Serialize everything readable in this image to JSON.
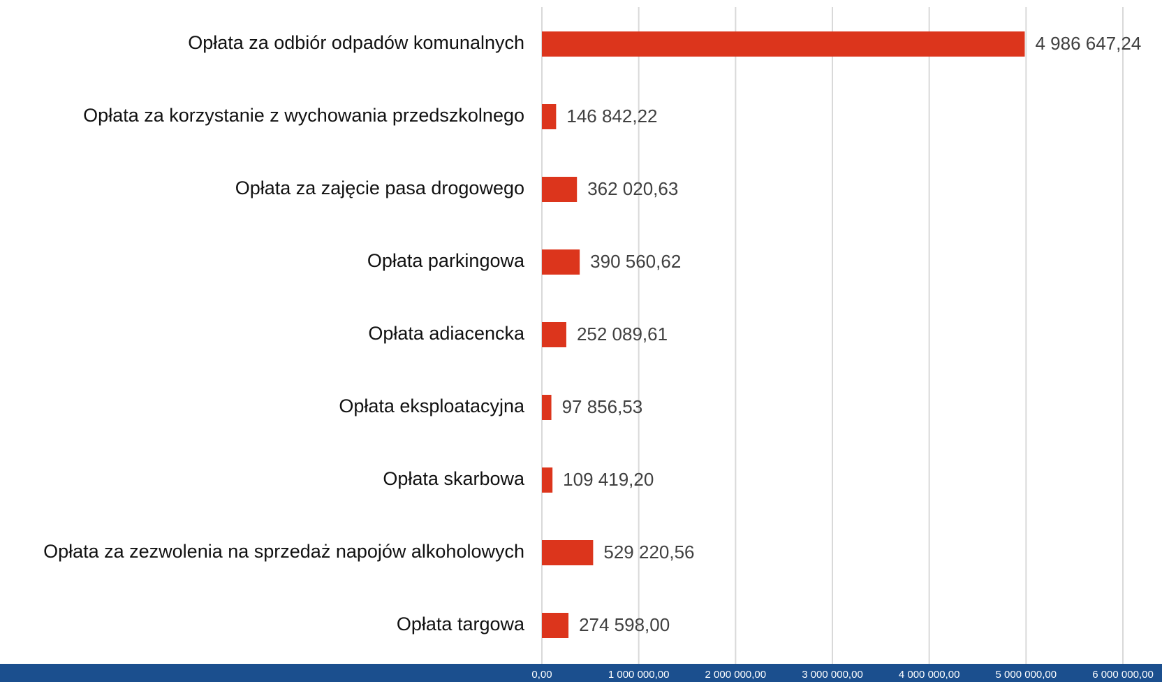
{
  "chart_data": {
    "type": "bar",
    "orientation": "horizontal",
    "categories": [
      "Opłata za odbiór odpadów komunalnych",
      "Opłata za korzystanie z wychowania przedszkolnego",
      "Opłata za zajęcie pasa drogowego",
      "Opłata parkingowa",
      "Opłata adiacencka",
      "Opłata eksploatacyjna",
      "Opłata skarbowa",
      "Opłata za zezwolenia na sprzedaż napojów alkoholowych",
      "Opłata targowa"
    ],
    "values": [
      4986647.24,
      146842.22,
      362020.63,
      390560.62,
      252089.61,
      97856.53,
      109419.2,
      529220.56,
      274598.0
    ],
    "value_labels": [
      "4 986 647,24",
      "146 842,22",
      "362 020,63",
      "390 560,62",
      "252 089,61",
      "97 856,53",
      "109 419,20",
      "529 220,56",
      "274 598,00"
    ],
    "color": "#dc351c",
    "xlim": [
      0,
      6000000
    ],
    "xticks": [
      {
        "value": 0,
        "label": "0,00"
      },
      {
        "value": 1000000,
        "label": "1 000 000,00"
      },
      {
        "value": 2000000,
        "label": "2 000 000,00"
      },
      {
        "value": 3000000,
        "label": "3 000 000,00"
      },
      {
        "value": 4000000,
        "label": "4 000 000,00"
      },
      {
        "value": 5000000,
        "label": "5 000 000,00"
      },
      {
        "value": 6000000,
        "label": "6 000 000,00"
      }
    ],
    "grid": true
  }
}
